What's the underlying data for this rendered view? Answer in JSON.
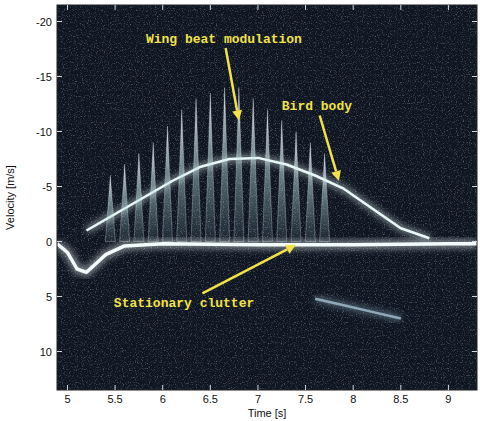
{
  "chart_data": {
    "type": "spectrogram",
    "x_label": "Time [s]",
    "y_label": "Velocity [m/s]",
    "xlim": [
      4.89,
      9.3
    ],
    "ylim": [
      13.5,
      -21.5
    ],
    "xticks": [
      5,
      5.5,
      6,
      6.5,
      7,
      7.5,
      8,
      8.5,
      9
    ],
    "yticks": [
      -20,
      -15,
      -10,
      -5,
      0,
      5,
      10
    ],
    "grid": false,
    "series": [
      {
        "type": "line",
        "color": "#e8f8f8",
        "x": [
          5.2,
          5.5,
          5.8,
          6.1,
          6.4,
          6.7,
          7.0,
          7.3,
          7.6,
          7.9,
          8.2,
          8.5,
          8.8
        ],
        "values": [
          -1,
          -2.5,
          -4,
          -5.5,
          -6.8,
          -7.5,
          -7.6,
          -7,
          -6,
          -4.8,
          -3,
          -1.2,
          -0.3
        ]
      },
      {
        "type": "spike",
        "color": "#e8f8f8",
        "x": [
          5.45,
          5.6,
          5.75,
          5.9,
          6.05,
          6.2,
          6.35,
          6.5,
          6.65,
          6.8,
          6.95,
          7.1,
          7.25,
          7.4,
          7.55,
          7.7
        ],
        "values": [
          -6,
          -7,
          -8,
          -9,
          -10.5,
          -12,
          -13,
          -13.5,
          -14,
          -14,
          -13,
          -12,
          -11,
          -10,
          -9,
          -8
        ]
      },
      {
        "type": "line",
        "color": "#f2fbfb",
        "x": [
          4.89,
          5.0,
          5.1,
          5.2,
          5.4,
          5.6,
          6.0,
          7.0,
          8.0,
          9.0,
          9.3
        ],
        "values": [
          0.2,
          1,
          2.5,
          2.8,
          1.2,
          0.4,
          0.2,
          0.3,
          0.3,
          0.2,
          0.2
        ]
      },
      {
        "type": "line",
        "color": "#8fa9b8",
        "x": [
          7.6,
          7.9,
          8.2,
          8.5
        ],
        "values": [
          5.2,
          5.8,
          6.4,
          7.0
        ]
      }
    ],
    "annotations": [
      {
        "text": "Wing beat modulation",
        "x": 6.8,
        "y": -11,
        "color": "#f2e24a"
      },
      {
        "text": "Bird body",
        "x": 7.85,
        "y": -5.5,
        "color": "#f2e24a"
      },
      {
        "text": "Stationary clutter",
        "x": 7.4,
        "y": 0.3,
        "color": "#f2e24a"
      }
    ]
  }
}
